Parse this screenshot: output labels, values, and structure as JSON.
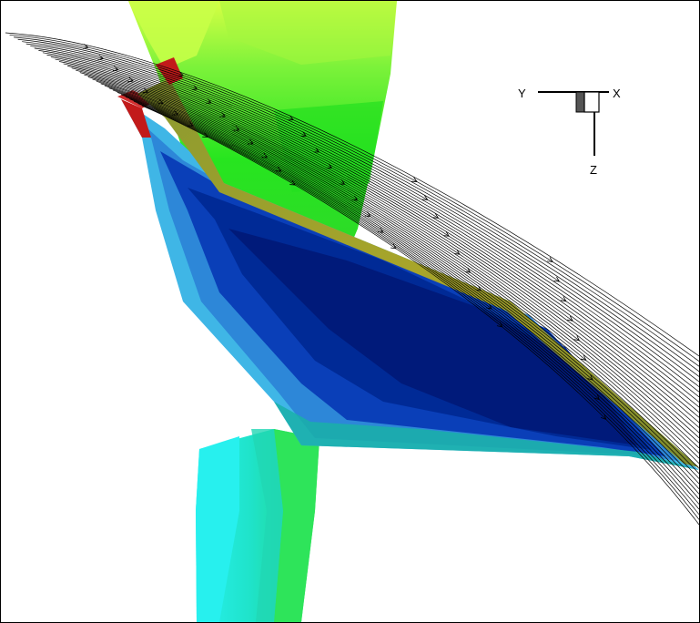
{
  "axes_triad": {
    "y_label": "Y",
    "x_label": "X",
    "z_label": "Z"
  },
  "colors": {
    "background": "#ffffff",
    "frame": "#000000",
    "streamline": "#000000",
    "pylon_top_light": "#d6ff44",
    "pylon_green": "#27e51f",
    "wing_dark_blue": "#001a7a",
    "wing_mid_blue": "#0a3fb8",
    "wing_light_blue": "#2d87d8",
    "wing_edge_cyan": "#3fb6e6",
    "leading_edge_yellow": "#a8a52a",
    "tip_red": "#c21a1a",
    "body_cyan": "#27f0ee",
    "body_teal": "#1fd1a8",
    "body_green": "#2ee45a"
  },
  "scene": {
    "streamline_count": 34
  }
}
